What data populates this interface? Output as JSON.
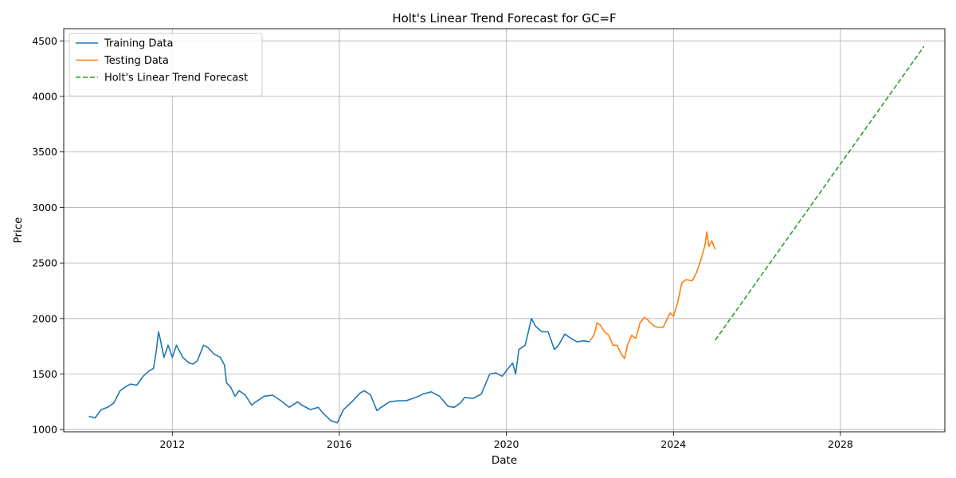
{
  "chart_data": {
    "type": "line",
    "title": "Holt's Linear Trend Forecast for GC=F",
    "xlabel": "Date",
    "ylabel": "Price",
    "xlim": [
      2009.4,
      2030.5
    ],
    "ylim": [
      980,
      4610
    ],
    "x_ticks": [
      2012,
      2016,
      2020,
      2024,
      2028
    ],
    "x_tick_labels": [
      "2012",
      "2016",
      "2020",
      "2024",
      "2028"
    ],
    "y_ticks": [
      1000,
      1500,
      2000,
      2500,
      3000,
      3500,
      4000,
      4500
    ],
    "y_tick_labels": [
      "1000",
      "1500",
      "2000",
      "2500",
      "3000",
      "3500",
      "4000",
      "4500"
    ],
    "grid": true,
    "legend_position": "top-left",
    "series": [
      {
        "name": "Training Data",
        "color": "#1f77b4",
        "style": "solid",
        "x": [
          2010.0,
          2010.15,
          2010.3,
          2010.45,
          2010.6,
          2010.75,
          2010.9,
          2011.0,
          2011.15,
          2011.3,
          2011.45,
          2011.55,
          2011.62,
          2011.67,
          2011.72,
          2011.8,
          2011.9,
          2012.0,
          2012.1,
          2012.25,
          2012.4,
          2012.5,
          2012.6,
          2012.75,
          2012.85,
          2013.0,
          2013.15,
          2013.25,
          2013.3,
          2013.4,
          2013.5,
          2013.6,
          2013.75,
          2013.9,
          2014.0,
          2014.2,
          2014.4,
          2014.6,
          2014.8,
          2015.0,
          2015.1,
          2015.3,
          2015.5,
          2015.6,
          2015.8,
          2015.95,
          2016.1,
          2016.3,
          2016.5,
          2016.6,
          2016.75,
          2016.9,
          2017.0,
          2017.2,
          2017.4,
          2017.6,
          2017.75,
          2017.9,
          2018.0,
          2018.2,
          2018.4,
          2018.6,
          2018.75,
          2018.9,
          2019.0,
          2019.2,
          2019.4,
          2019.6,
          2019.75,
          2019.9,
          2020.0,
          2020.15,
          2020.22,
          2020.3,
          2020.45,
          2020.6,
          2020.7,
          2020.85,
          2021.0,
          2021.15,
          2021.25,
          2021.4,
          2021.55,
          2021.7,
          2021.85,
          2022.0
        ],
        "y": [
          1120,
          1105,
          1180,
          1200,
          1240,
          1350,
          1390,
          1410,
          1400,
          1480,
          1530,
          1550,
          1720,
          1880,
          1800,
          1650,
          1760,
          1650,
          1760,
          1650,
          1600,
          1590,
          1620,
          1760,
          1740,
          1680,
          1650,
          1580,
          1420,
          1380,
          1300,
          1350,
          1310,
          1220,
          1250,
          1300,
          1310,
          1260,
          1200,
          1250,
          1220,
          1180,
          1200,
          1150,
          1080,
          1060,
          1180,
          1250,
          1330,
          1350,
          1310,
          1170,
          1200,
          1250,
          1260,
          1260,
          1280,
          1300,
          1320,
          1340,
          1300,
          1210,
          1200,
          1240,
          1290,
          1280,
          1320,
          1500,
          1510,
          1480,
          1530,
          1600,
          1500,
          1720,
          1760,
          2000,
          1930,
          1880,
          1880,
          1720,
          1760,
          1860,
          1820,
          1790,
          1800,
          1790
        ]
      },
      {
        "name": "Testing Data",
        "color": "#ff7f0e",
        "style": "solid",
        "x": [
          2022.0,
          2022.1,
          2022.17,
          2022.25,
          2022.35,
          2022.45,
          2022.55,
          2022.65,
          2022.75,
          2022.83,
          2022.9,
          2023.0,
          2023.1,
          2023.2,
          2023.3,
          2023.38,
          2023.45,
          2023.55,
          2023.65,
          2023.75,
          2023.83,
          2023.92,
          2024.0,
          2024.1,
          2024.2,
          2024.3,
          2024.45,
          2024.55,
          2024.65,
          2024.75,
          2024.8,
          2024.85,
          2024.92,
          2025.0
        ],
        "y": [
          1800,
          1850,
          1960,
          1940,
          1880,
          1850,
          1760,
          1760,
          1680,
          1640,
          1760,
          1850,
          1820,
          1960,
          2010,
          1990,
          1960,
          1930,
          1920,
          1920,
          1980,
          2050,
          2020,
          2140,
          2320,
          2350,
          2340,
          2410,
          2520,
          2650,
          2780,
          2650,
          2700,
          2620
        ]
      },
      {
        "name": "Holt's Linear Trend Forecast",
        "color": "#2ca02c",
        "style": "dashed",
        "x": [
          2025.0,
          2030.0
        ],
        "y": [
          1805,
          4450
        ]
      }
    ]
  }
}
